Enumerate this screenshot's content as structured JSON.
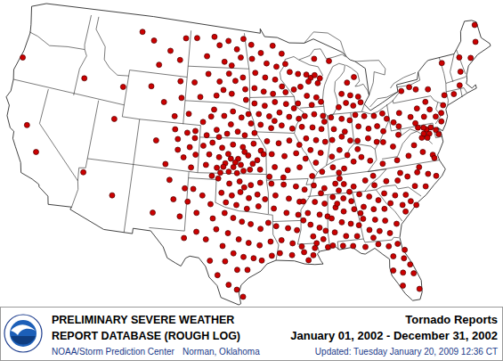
{
  "chart_data": {
    "type": "map",
    "title": "Tornado Reports",
    "subtitle": "January 01, 2002 - December 31, 2002",
    "header": [
      "PRELIMINARY SEVERE WEATHER",
      "REPORT DATABASE (ROUGH LOG)"
    ],
    "source": [
      "NOAA/Storm Prediction Center",
      "Norman, Oklahoma"
    ],
    "updated": "Updated: Tuesday January 20, 2009 12:36 CT",
    "color": "#cc0000",
    "marker": "circle",
    "points": [
      [
        -103.2,
        48.4
      ],
      [
        -101.0,
        48.6
      ],
      [
        -100.3,
        47.9
      ],
      [
        -99.2,
        48.3
      ],
      [
        -98.1,
        47.6
      ],
      [
        -97.6,
        46.9
      ],
      [
        -99.6,
        46.5
      ],
      [
        -101.8,
        46.9
      ],
      [
        -98.7,
        46.2
      ],
      [
        -97.3,
        48.5
      ],
      [
        -103.1,
        44.6
      ],
      [
        -101.5,
        45.4
      ],
      [
        -100.1,
        44.8
      ],
      [
        -99.0,
        45.5
      ],
      [
        -98.2,
        44.9
      ],
      [
        -97.3,
        45.2
      ],
      [
        -97.0,
        44.2
      ],
      [
        -98.6,
        43.8
      ],
      [
        -100.4,
        43.6
      ],
      [
        -102.3,
        43.4
      ],
      [
        -96.9,
        43.3
      ],
      [
        -99.6,
        44.1
      ],
      [
        -103.5,
        41.9
      ],
      [
        -101.8,
        41.3
      ],
      [
        -100.6,
        42.4
      ],
      [
        -99.4,
        41.9
      ],
      [
        -98.4,
        42.3
      ],
      [
        -97.4,
        41.8
      ],
      [
        -96.3,
        41.3
      ],
      [
        -97.8,
        40.6
      ],
      [
        -99.0,
        40.4
      ],
      [
        -100.2,
        40.7
      ],
      [
        -101.3,
        40.2
      ],
      [
        -102.6,
        40.5
      ],
      [
        -98.6,
        41.2
      ],
      [
        -97.0,
        40.3
      ],
      [
        -96.6,
        42.1
      ],
      [
        -100.9,
        41.8
      ],
      [
        -99.9,
        40.1
      ],
      [
        -95.9,
        40.5
      ],
      [
        -101.6,
        39.3
      ],
      [
        -100.6,
        39.6
      ],
      [
        -99.5,
        39.2
      ],
      [
        -98.3,
        39.5
      ],
      [
        -97.2,
        39.3
      ],
      [
        -96.0,
        39.6
      ],
      [
        -95.2,
        39.0
      ],
      [
        -100.9,
        38.6
      ],
      [
        -99.8,
        38.4
      ],
      [
        -98.8,
        38.7
      ],
      [
        -97.7,
        38.3
      ],
      [
        -96.6,
        38.6
      ],
      [
        -95.6,
        38.2
      ],
      [
        -101.2,
        37.7
      ],
      [
        -100.0,
        37.5
      ],
      [
        -99.1,
        37.9
      ],
      [
        -98.2,
        37.6
      ],
      [
        -97.4,
        37.8
      ],
      [
        -96.4,
        37.4
      ],
      [
        -95.3,
        37.4
      ],
      [
        -98.7,
        37.2
      ],
      [
        -97.8,
        37.1
      ],
      [
        -99.6,
        37.1
      ],
      [
        -98.0,
        38.0
      ],
      [
        -97.0,
        38.9
      ],
      [
        -94.9,
        38.7
      ],
      [
        -96.1,
        37.9
      ],
      [
        -98.5,
        38.3
      ],
      [
        -99.3,
        37.6
      ],
      [
        -97.1,
        37.3
      ],
      [
        -104.9,
        40.5
      ],
      [
        -104.5,
        39.7
      ],
      [
        -103.5,
        40.3
      ],
      [
        -102.6,
        39.9
      ],
      [
        -103.1,
        39.1
      ],
      [
        -102.4,
        38.5
      ],
      [
        -103.7,
        38.2
      ],
      [
        -104.4,
        38.8
      ],
      [
        -102.8,
        37.4
      ],
      [
        -105.6,
        37.5
      ],
      [
        -106.9,
        39.4
      ],
      [
        -106.5,
        42.7
      ],
      [
        -104.5,
        43.2
      ],
      [
        -105.1,
        41.6
      ],
      [
        -108.2,
        43.9
      ],
      [
        -104.8,
        44.6
      ],
      [
        -108.6,
        47.8
      ],
      [
        -106.4,
        47.1
      ],
      [
        -105.1,
        46.4
      ],
      [
        -107.6,
        45.8
      ],
      [
        -110.2,
        48.4
      ],
      [
        -104.6,
        48.3
      ],
      [
        -123.9,
        44.0
      ],
      [
        -121.3,
        38.6
      ],
      [
        -119.6,
        36.6
      ],
      [
        -111.5,
        43.5
      ],
      [
        -114.2,
        35.8
      ],
      [
        -110.8,
        34.3
      ],
      [
        -111.9,
        40.7
      ],
      [
        -116.2,
        43.6
      ],
      [
        -106.4,
        33.3
      ],
      [
        -104.4,
        34.6
      ],
      [
        -103.6,
        33.2
      ],
      [
        -105.0,
        36.2
      ],
      [
        -103.3,
        35.6
      ],
      [
        -99.8,
        36.6
      ],
      [
        -98.6,
        36.2
      ],
      [
        -97.5,
        36.4
      ],
      [
        -96.3,
        36.1
      ],
      [
        -95.3,
        36.3
      ],
      [
        -99.4,
        35.4
      ],
      [
        -98.3,
        35.2
      ],
      [
        -97.4,
        35.5
      ],
      [
        -96.5,
        35.0
      ],
      [
        -95.6,
        35.3
      ],
      [
        -94.8,
        34.9
      ],
      [
        -98.9,
        34.6
      ],
      [
        -97.8,
        34.4
      ],
      [
        -96.7,
        34.1
      ],
      [
        -95.5,
        34.3
      ],
      [
        -100.5,
        36.8
      ],
      [
        -97.0,
        35.9
      ],
      [
        -102.4,
        35.6
      ],
      [
        -101.4,
        35.1
      ],
      [
        -100.5,
        34.4
      ],
      [
        -101.9,
        33.6
      ],
      [
        -102.9,
        34.5
      ],
      [
        -100.2,
        33.2
      ],
      [
        -99.0,
        33.7
      ],
      [
        -98.1,
        33.3
      ],
      [
        -97.2,
        33.0
      ],
      [
        -96.3,
        32.8
      ],
      [
        -95.3,
        32.4
      ],
      [
        -94.5,
        32.9
      ],
      [
        -99.8,
        32.3
      ],
      [
        -98.6,
        32.0
      ],
      [
        -97.5,
        31.5
      ],
      [
        -96.5,
        31.2
      ],
      [
        -95.4,
        31.0
      ],
      [
        -94.3,
        31.3
      ],
      [
        -100.8,
        31.4
      ],
      [
        -99.1,
        30.9
      ],
      [
        -98.0,
        30.3
      ],
      [
        -97.0,
        30.0
      ],
      [
        -96.0,
        29.9
      ],
      [
        -95.2,
        29.7
      ],
      [
        -94.2,
        30.1
      ],
      [
        -98.8,
        29.6
      ],
      [
        -97.6,
        28.9
      ],
      [
        -96.6,
        28.9
      ],
      [
        -98.4,
        27.6
      ],
      [
        -97.6,
        27.2
      ],
      [
        -99.5,
        28.4
      ],
      [
        -101.8,
        32.0
      ],
      [
        -103.0,
        31.4
      ],
      [
        -100.3,
        29.6
      ],
      [
        -97.0,
        26.6
      ],
      [
        -96.3,
        48.0
      ],
      [
        -95.1,
        47.3
      ],
      [
        -93.6,
        47.9
      ],
      [
        -92.5,
        47.2
      ],
      [
        -94.4,
        46.4
      ],
      [
        -93.2,
        46.1
      ],
      [
        -95.8,
        45.6
      ],
      [
        -94.6,
        45.2
      ],
      [
        -93.4,
        45.0
      ],
      [
        -92.6,
        44.4
      ],
      [
        -95.9,
        44.3
      ],
      [
        -94.8,
        44.0
      ],
      [
        -93.7,
        43.8
      ],
      [
        -92.2,
        43.9
      ],
      [
        -96.2,
        46.8
      ],
      [
        -95.9,
        43.0
      ],
      [
        -94.7,
        42.8
      ],
      [
        -93.5,
        43.1
      ],
      [
        -92.2,
        42.9
      ],
      [
        -91.3,
        42.5
      ],
      [
        -95.4,
        42.1
      ],
      [
        -94.2,
        41.9
      ],
      [
        -93.0,
        42.2
      ],
      [
        -91.9,
        41.8
      ],
      [
        -90.8,
        41.6
      ],
      [
        -95.2,
        41.2
      ],
      [
        -94.0,
        40.9
      ],
      [
        -92.8,
        41.1
      ],
      [
        -91.6,
        40.8
      ],
      [
        -93.6,
        41.5
      ],
      [
        -94.5,
        39.8
      ],
      [
        -93.2,
        39.6
      ],
      [
        -92.0,
        39.8
      ],
      [
        -90.9,
        39.4
      ],
      [
        -94.0,
        38.7
      ],
      [
        -92.6,
        38.5
      ],
      [
        -91.3,
        38.7
      ],
      [
        -90.3,
        38.2
      ],
      [
        -93.7,
        37.6
      ],
      [
        -92.3,
        37.3
      ],
      [
        -91.0,
        37.5
      ],
      [
        -94.3,
        36.8
      ],
      [
        -92.8,
        36.7
      ],
      [
        -89.7,
        36.7
      ],
      [
        -94.1,
        36.2
      ],
      [
        -92.8,
        36.1
      ],
      [
        -91.5,
        35.9
      ],
      [
        -90.6,
        35.6
      ],
      [
        -93.7,
        35.2
      ],
      [
        -92.3,
        34.9
      ],
      [
        -91.2,
        34.6
      ],
      [
        -93.9,
        34.1
      ],
      [
        -92.6,
        33.7
      ],
      [
        -91.4,
        33.5
      ],
      [
        -93.7,
        32.6
      ],
      [
        -92.5,
        32.4
      ],
      [
        -91.6,
        32.2
      ],
      [
        -93.2,
        31.4
      ],
      [
        -92.1,
        31.1
      ],
      [
        -91.2,
        30.8
      ],
      [
        -93.4,
        30.3
      ],
      [
        -92.2,
        30.1
      ],
      [
        -91.0,
        30.3
      ],
      [
        -90.1,
        30.0
      ],
      [
        -90.6,
        29.6
      ],
      [
        -89.9,
        30.6
      ],
      [
        -90.8,
        34.6
      ],
      [
        -89.6,
        34.5
      ],
      [
        -88.6,
        34.3
      ],
      [
        -90.4,
        33.6
      ],
      [
        -89.2,
        33.4
      ],
      [
        -88.4,
        33.2
      ],
      [
        -90.2,
        32.6
      ],
      [
        -89.3,
        32.3
      ],
      [
        -88.7,
        32.0
      ],
      [
        -90.0,
        31.6
      ],
      [
        -89.0,
        31.3
      ],
      [
        -88.6,
        30.6
      ],
      [
        -89.7,
        31.0
      ],
      [
        -90.9,
        33.0
      ],
      [
        -87.7,
        34.8
      ],
      [
        -86.6,
        34.6
      ],
      [
        -85.8,
        34.3
      ],
      [
        -87.5,
        33.9
      ],
      [
        -86.7,
        33.5
      ],
      [
        -85.6,
        33.6
      ],
      [
        -88.0,
        33.0
      ],
      [
        -87.0,
        32.6
      ],
      [
        -86.1,
        32.4
      ],
      [
        -85.3,
        32.2
      ],
      [
        -87.8,
        31.8
      ],
      [
        -86.7,
        31.4
      ],
      [
        -85.6,
        31.3
      ],
      [
        -88.1,
        30.7
      ],
      [
        -87.3,
        34.2
      ],
      [
        -84.9,
        34.8
      ],
      [
        -83.9,
        34.5
      ],
      [
        -83.0,
        34.1
      ],
      [
        -84.6,
        33.7
      ],
      [
        -83.6,
        33.4
      ],
      [
        -82.5,
        33.3
      ],
      [
        -84.8,
        32.7
      ],
      [
        -83.6,
        32.5
      ],
      [
        -82.6,
        32.3
      ],
      [
        -84.3,
        31.7
      ],
      [
        -83.3,
        31.5
      ],
      [
        -82.3,
        31.2
      ],
      [
        -81.5,
        31.9
      ],
      [
        -84.0,
        31.0
      ],
      [
        -85.0,
        33.2
      ],
      [
        -87.1,
        30.6
      ],
      [
        -86.1,
        30.5
      ],
      [
        -84.9,
        30.3
      ],
      [
        -83.6,
        30.4
      ],
      [
        -82.6,
        30.1
      ],
      [
        -81.7,
        30.2
      ],
      [
        -82.3,
        29.2
      ],
      [
        -81.3,
        28.9
      ],
      [
        -82.5,
        28.0
      ],
      [
        -81.6,
        27.7
      ],
      [
        -80.6,
        27.5
      ],
      [
        -81.8,
        26.6
      ],
      [
        -80.3,
        26.1
      ],
      [
        -81.1,
        29.6
      ],
      [
        -80.8,
        28.3
      ],
      [
        -82.3,
        34.6
      ],
      [
        -81.2,
        34.3
      ],
      [
        -80.1,
        34.2
      ],
      [
        -81.8,
        33.7
      ],
      [
        -80.6,
        33.4
      ],
      [
        -79.7,
        33.6
      ],
      [
        -80.4,
        32.8
      ],
      [
        -79.2,
        33.2
      ],
      [
        -83.2,
        35.4
      ],
      [
        -81.9,
        35.6
      ],
      [
        -80.7,
        35.5
      ],
      [
        -79.6,
        35.7
      ],
      [
        -78.5,
        35.9
      ],
      [
        -77.4,
        35.6
      ],
      [
        -76.6,
        35.3
      ],
      [
        -79.0,
        34.8
      ],
      [
        -77.9,
        34.6
      ],
      [
        -80.3,
        36.1
      ],
      [
        -78.2,
        36.3
      ],
      [
        -89.6,
        35.9
      ],
      [
        -88.5,
        35.6
      ],
      [
        -87.3,
        35.9
      ],
      [
        -86.4,
        35.8
      ],
      [
        -85.4,
        35.5
      ],
      [
        -84.1,
        35.9
      ],
      [
        -83.2,
        36.2
      ],
      [
        -88.9,
        35.2
      ],
      [
        -87.0,
        35.3
      ],
      [
        -85.9,
        35.1
      ],
      [
        -86.8,
        36.3
      ],
      [
        -88.6,
        37.0
      ],
      [
        -87.4,
        37.3
      ],
      [
        -86.2,
        37.1
      ],
      [
        -85.1,
        37.6
      ],
      [
        -84.2,
        37.9
      ],
      [
        -83.3,
        37.5
      ],
      [
        -85.7,
        38.2
      ],
      [
        -84.5,
        38.6
      ],
      [
        -86.8,
        36.8
      ],
      [
        -82.0,
        37.1
      ],
      [
        -80.4,
        37.2
      ],
      [
        -79.1,
        37.4
      ],
      [
        -77.5,
        37.5
      ],
      [
        -76.5,
        37.1
      ],
      [
        -78.3,
        38.2
      ],
      [
        -77.3,
        38.7
      ],
      [
        -80.6,
        38.4
      ],
      [
        -81.6,
        38.9
      ],
      [
        -79.8,
        39.3
      ],
      [
        -76.4,
        36.8
      ],
      [
        -77.0,
        39.0
      ],
      [
        -76.6,
        39.3
      ],
      [
        -76.9,
        39.5
      ],
      [
        -76.4,
        38.9
      ],
      [
        -75.6,
        39.1
      ],
      [
        -75.4,
        38.7
      ],
      [
        -77.5,
        39.6
      ],
      [
        -76.1,
        39.4
      ],
      [
        -76.7,
        38.6
      ],
      [
        -80.1,
        40.4
      ],
      [
        -79.3,
        41.1
      ],
      [
        -78.1,
        40.6
      ],
      [
        -77.2,
        41.2
      ],
      [
        -76.6,
        40.4
      ],
      [
        -75.8,
        40.9
      ],
      [
        -75.3,
        40.2
      ],
      [
        -77.7,
        40.0
      ],
      [
        -79.6,
        40.0
      ],
      [
        -76.1,
        41.6
      ],
      [
        -74.6,
        40.4
      ],
      [
        -74.8,
        39.7
      ],
      [
        -74.2,
        41.0
      ],
      [
        -73.8,
        41.8
      ],
      [
        -75.5,
        42.6
      ],
      [
        -76.9,
        42.8
      ],
      [
        -78.6,
        42.9
      ],
      [
        -77.6,
        43.1
      ],
      [
        -73.2,
        44.5
      ],
      [
        -71.8,
        42.3
      ],
      [
        -72.7,
        41.7
      ],
      [
        -71.3,
        43.4
      ],
      [
        -69.7,
        44.3
      ],
      [
        -68.6,
        45.5
      ],
      [
        -68.1,
        46.9
      ],
      [
        -71.0,
        44.6
      ],
      [
        -84.3,
        41.5
      ],
      [
        -83.3,
        41.3
      ],
      [
        -82.2,
        41.2
      ],
      [
        -81.2,
        41.3
      ],
      [
        -80.8,
        40.8
      ],
      [
        -84.1,
        40.5
      ],
      [
        -83.0,
        40.2
      ],
      [
        -82.0,
        40.3
      ],
      [
        -81.4,
        39.8
      ],
      [
        -84.4,
        39.3
      ],
      [
        -83.2,
        39.4
      ],
      [
        -82.3,
        39.0
      ],
      [
        -87.1,
        41.5
      ],
      [
        -85.9,
        41.3
      ],
      [
        -85.0,
        41.1
      ],
      [
        -86.9,
        40.5
      ],
      [
        -85.7,
        40.2
      ],
      [
        -87.2,
        39.6
      ],
      [
        -86.1,
        39.8
      ],
      [
        -85.2,
        39.4
      ],
      [
        -86.5,
        38.7
      ],
      [
        -87.4,
        38.2
      ],
      [
        -90.1,
        41.8
      ],
      [
        -89.0,
        41.9
      ],
      [
        -88.0,
        41.7
      ],
      [
        -90.5,
        40.9
      ],
      [
        -89.3,
        40.8
      ],
      [
        -88.3,
        40.6
      ],
      [
        -90.1,
        39.9
      ],
      [
        -89.0,
        39.7
      ],
      [
        -88.0,
        39.5
      ],
      [
        -89.7,
        38.9
      ],
      [
        -88.6,
        38.6
      ],
      [
        -89.2,
        37.8
      ],
      [
        -87.9,
        41.2
      ],
      [
        -86.1,
        42.3
      ],
      [
        -85.2,
        42.6
      ],
      [
        -84.4,
        42.3
      ],
      [
        -83.5,
        42.5
      ],
      [
        -85.6,
        43.4
      ],
      [
        -84.6,
        43.2
      ],
      [
        -83.7,
        43.0
      ],
      [
        -84.8,
        44.3
      ],
      [
        -83.9,
        44.7
      ],
      [
        -86.7,
        46.3
      ],
      [
        -88.5,
        46.6
      ],
      [
        -91.6,
        45.6
      ],
      [
        -90.6,
        45.4
      ],
      [
        -89.6,
        45.3
      ],
      [
        -89.1,
        45.0
      ],
      [
        -88.6,
        45.2
      ],
      [
        -88.0,
        44.9
      ],
      [
        -89.4,
        44.7
      ],
      [
        -88.3,
        44.5
      ],
      [
        -90.4,
        44.3
      ],
      [
        -91.2,
        44.1
      ],
      [
        -89.7,
        43.5
      ],
      [
        -88.6,
        43.3
      ],
      [
        -90.8,
        42.9
      ],
      [
        -89.2,
        42.7
      ],
      [
        -88.1,
        42.9
      ],
      [
        -92.1,
        46.3
      ]
    ]
  }
}
